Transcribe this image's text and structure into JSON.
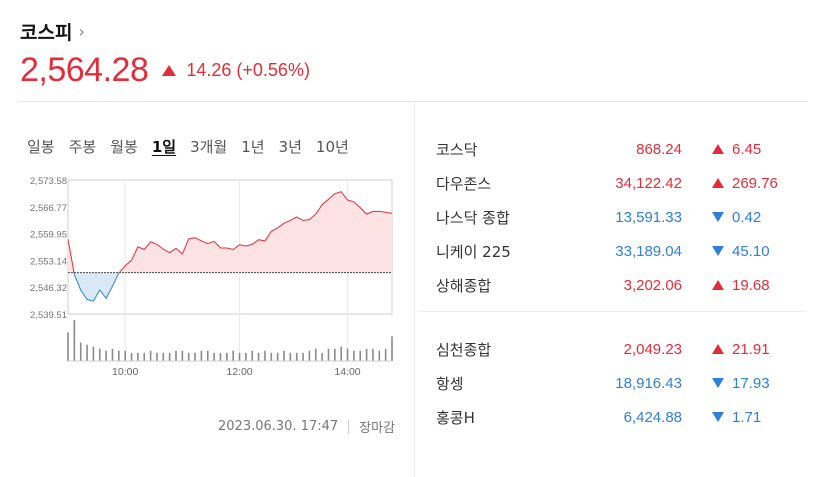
{
  "header": {
    "title": "코스피",
    "chevron": "›",
    "price": "2,564.28",
    "change": "14.26 (+0.56%)",
    "direction": "up"
  },
  "colors": {
    "up": "#e22d3a",
    "down": "#2f80d6"
  },
  "tabs": [
    {
      "label": "일봉",
      "active": false
    },
    {
      "label": "주봉",
      "active": false
    },
    {
      "label": "월봉",
      "active": false
    },
    {
      "label": "1일",
      "active": true
    },
    {
      "label": "3개월",
      "active": false
    },
    {
      "label": "1년",
      "active": false
    },
    {
      "label": "3년",
      "active": false
    },
    {
      "label": "10년",
      "active": false
    }
  ],
  "chart_data": {
    "type": "area",
    "y_ticks": [
      "2,573.58",
      "2,566.77",
      "2,559.95",
      "2,553.14",
      "2,546.32",
      "2,539.51"
    ],
    "ylim": [
      2539.51,
      2573.58
    ],
    "baseline": 2550.02,
    "x_ticks": [
      "10:00",
      "12:00",
      "14:00"
    ],
    "points": [
      [
        0,
        2558.5
      ],
      [
        1,
        2549.5
      ],
      [
        2,
        2545.6
      ],
      [
        3,
        2543.2
      ],
      [
        4,
        2542.8
      ],
      [
        5,
        2545.6
      ],
      [
        6,
        2543.5
      ],
      [
        7,
        2546.6
      ],
      [
        8,
        2549.9
      ],
      [
        9,
        2551.8
      ],
      [
        10,
        2553.2
      ],
      [
        11,
        2556.6
      ],
      [
        12,
        2555.9
      ],
      [
        13,
        2557.9
      ],
      [
        14,
        2557.2
      ],
      [
        15,
        2556.0
      ],
      [
        16,
        2555.1
      ],
      [
        17,
        2556.2
      ],
      [
        18,
        2554.8
      ],
      [
        19,
        2558.6
      ],
      [
        20,
        2558.9
      ],
      [
        21,
        2558.1
      ],
      [
        22,
        2557.4
      ],
      [
        23,
        2558.0
      ],
      [
        24,
        2556.3
      ],
      [
        25,
        2556.3
      ],
      [
        26,
        2555.9
      ],
      [
        27,
        2557.1
      ],
      [
        28,
        2556.8
      ],
      [
        29,
        2557.2
      ],
      [
        30,
        2558.4
      ],
      [
        31,
        2558.1
      ],
      [
        32,
        2560.5
      ],
      [
        33,
        2561.4
      ],
      [
        34,
        2562.6
      ],
      [
        35,
        2563.3
      ],
      [
        36,
        2564.2
      ],
      [
        37,
        2563.3
      ],
      [
        38,
        2563.5
      ],
      [
        39,
        2564.9
      ],
      [
        40,
        2567.3
      ],
      [
        41,
        2568.7
      ],
      [
        42,
        2570.1
      ],
      [
        43,
        2570.6
      ],
      [
        44,
        2568.5
      ],
      [
        45,
        2568.0
      ],
      [
        46,
        2566.6
      ],
      [
        47,
        2564.9
      ],
      [
        48,
        2565.6
      ],
      [
        49,
        2565.6
      ],
      [
        50,
        2565.4
      ],
      [
        51,
        2565.1
      ]
    ],
    "x_max": 51,
    "volume": [
      14,
      20,
      9,
      8,
      7,
      6,
      5,
      6,
      5,
      5,
      4,
      4,
      4,
      5,
      4,
      4,
      4,
      5,
      5,
      4,
      4,
      5,
      5,
      4,
      4,
      4,
      5,
      4,
      4,
      5,
      4,
      5,
      4,
      4,
      5,
      4,
      4,
      4,
      5,
      6,
      4,
      6,
      6,
      7,
      6,
      5,
      5,
      6,
      6,
      5,
      6,
      12
    ]
  },
  "footer": {
    "datetime": "2023.06.30. 17:47",
    "status": "장마감"
  },
  "indices_group1": [
    {
      "name": "코스닥",
      "value": "868.24",
      "change": "6.45",
      "dir": "up"
    },
    {
      "name": "다우존스",
      "value": "34,122.42",
      "change": "269.76",
      "dir": "up"
    },
    {
      "name": "나스닥 종합",
      "value": "13,591.33",
      "change": "0.42",
      "dir": "down"
    },
    {
      "name": "니케이 225",
      "value": "33,189.04",
      "change": "45.10",
      "dir": "down"
    },
    {
      "name": "상해종합",
      "value": "3,202.06",
      "change": "19.68",
      "dir": "up"
    }
  ],
  "indices_group2": [
    {
      "name": "심천종합",
      "value": "2,049.23",
      "change": "21.91",
      "dir": "up"
    },
    {
      "name": "항셍",
      "value": "18,916.43",
      "change": "17.93",
      "dir": "down"
    },
    {
      "name": "홍콩H",
      "value": "6,424.88",
      "change": "1.71",
      "dir": "down"
    }
  ]
}
